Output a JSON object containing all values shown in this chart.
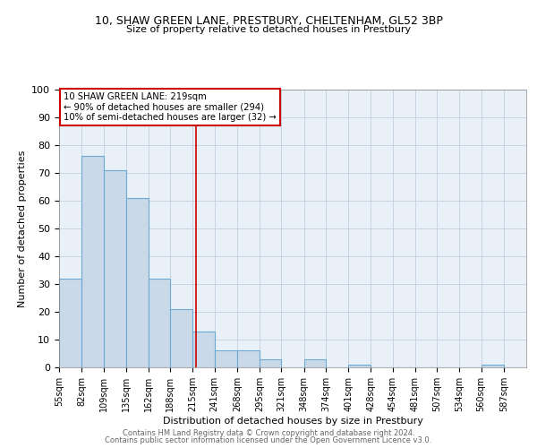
{
  "title1": "10, SHAW GREEN LANE, PRESTBURY, CHELTENHAM, GL52 3BP",
  "title2": "Size of property relative to detached houses in Prestbury",
  "xlabel": "Distribution of detached houses by size in Prestbury",
  "ylabel": "Number of detached properties",
  "bin_labels": [
    "55sqm",
    "82sqm",
    "109sqm",
    "135sqm",
    "162sqm",
    "188sqm",
    "215sqm",
    "241sqm",
    "268sqm",
    "295sqm",
    "321sqm",
    "348sqm",
    "374sqm",
    "401sqm",
    "428sqm",
    "454sqm",
    "481sqm",
    "507sqm",
    "534sqm",
    "560sqm",
    "587sqm"
  ],
  "bin_edges": [
    55,
    82,
    109,
    135,
    162,
    188,
    215,
    241,
    268,
    295,
    321,
    348,
    374,
    401,
    428,
    454,
    481,
    507,
    534,
    560,
    587,
    614
  ],
  "bar_heights": [
    32,
    76,
    71,
    61,
    32,
    21,
    13,
    6,
    6,
    3,
    0,
    3,
    0,
    1,
    0,
    0,
    0,
    0,
    0,
    1,
    0
  ],
  "bar_color": "#c9d9e8",
  "bar_edge_color": "#6aaad4",
  "red_line_x": 219,
  "ylim": [
    0,
    100
  ],
  "yticks": [
    0,
    10,
    20,
    30,
    40,
    50,
    60,
    70,
    80,
    90,
    100
  ],
  "annotation_line1": "10 SHAW GREEN LANE: 219sqm",
  "annotation_line2": "← 90% of detached houses are smaller (294)",
  "annotation_line3": "10% of semi-detached houses are larger (32) →",
  "annotation_box_color": "#ffffff",
  "annotation_box_edge_color": "#cc0000",
  "footer1": "Contains HM Land Registry data © Crown copyright and database right 2024.",
  "footer2": "Contains public sector information licensed under the Open Government Licence v3.0.",
  "background_color": "#eaf0f7",
  "grid_color": "#c0cfe0"
}
